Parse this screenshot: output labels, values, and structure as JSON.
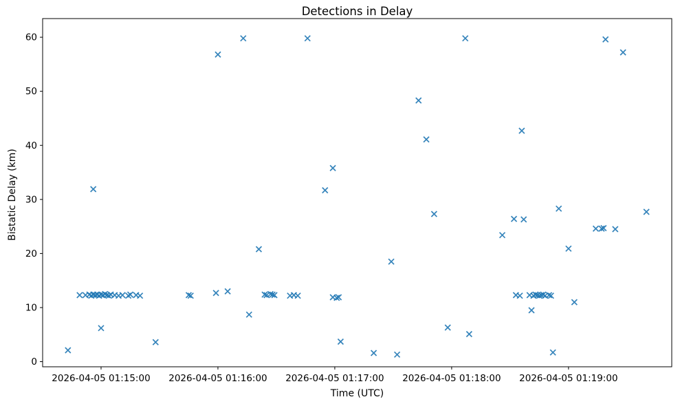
{
  "figure": {
    "title": "Detections in Delay",
    "xlabel": "Time (UTC)",
    "ylabel": "Bistatic Delay (km)"
  },
  "chart_data": {
    "type": "scatter",
    "title": "Detections in Delay",
    "xlabel": "Time (UTC)",
    "ylabel": "Bistatic Delay (km)",
    "legend": "none",
    "grid": false,
    "marker": "x",
    "marker_color": "#1f77b4",
    "date": "2026-04-05",
    "x_axis": {
      "start_time": "01:14:30",
      "end_time": "01:19:53",
      "tick_times": [
        "01:15:00",
        "01:16:00",
        "01:17:00",
        "01:18:00",
        "01:19:00"
      ],
      "tick_labels": [
        "2026-04-05 01:15:00",
        "2026-04-05 01:16:00",
        "2026-04-05 01:17:00",
        "2026-04-05 01:18:00",
        "2026-04-05 01:19:00"
      ]
    },
    "y_axis": {
      "min": -0.95,
      "max": 63.45,
      "ticks": [
        0,
        10,
        20,
        30,
        40,
        50,
        60
      ]
    },
    "points": [
      [
        "01:14:43",
        2.1
      ],
      [
        "01:14:49",
        12.3
      ],
      [
        "01:14:52",
        12.3
      ],
      [
        "01:14:54",
        12.4
      ],
      [
        "01:14:55",
        12.2
      ],
      [
        "01:14:56",
        31.9
      ],
      [
        "01:14:56",
        12.4
      ],
      [
        "01:14:57",
        12.3
      ],
      [
        "01:14:58",
        12.4
      ],
      [
        "01:14:59",
        12.2
      ],
      [
        "01:15:00",
        12.4
      ],
      [
        "01:15:00",
        6.2
      ],
      [
        "01:15:01",
        12.3
      ],
      [
        "01:15:02",
        12.5
      ],
      [
        "01:15:03",
        12.3
      ],
      [
        "01:15:04",
        12.2
      ],
      [
        "01:15:05",
        12.4
      ],
      [
        "01:15:07",
        12.3
      ],
      [
        "01:15:09",
        12.2
      ],
      [
        "01:15:11",
        12.3
      ],
      [
        "01:15:14",
        12.2
      ],
      [
        "01:15:15",
        12.4
      ],
      [
        "01:15:18",
        12.3
      ],
      [
        "01:15:20",
        12.2
      ],
      [
        "01:15:28",
        3.6
      ],
      [
        "01:15:45",
        12.3
      ],
      [
        "01:15:46",
        12.2
      ],
      [
        "01:15:59",
        12.7
      ],
      [
        "01:16:00",
        56.8
      ],
      [
        "01:16:05",
        13.0
      ],
      [
        "01:16:13",
        59.8
      ],
      [
        "01:16:16",
        8.7
      ],
      [
        "01:16:21",
        20.8
      ],
      [
        "01:16:24",
        12.4
      ],
      [
        "01:16:25",
        12.3
      ],
      [
        "01:16:27",
        12.5
      ],
      [
        "01:16:28",
        12.4
      ],
      [
        "01:16:29",
        12.3
      ],
      [
        "01:16:37",
        12.2
      ],
      [
        "01:16:39",
        12.3
      ],
      [
        "01:16:41",
        12.2
      ],
      [
        "01:16:46",
        59.8
      ],
      [
        "01:16:55",
        31.7
      ],
      [
        "01:16:59",
        35.8
      ],
      [
        "01:16:59",
        11.9
      ],
      [
        "01:17:01",
        11.8
      ],
      [
        "01:17:02",
        11.9
      ],
      [
        "01:17:03",
        3.7
      ],
      [
        "01:17:20",
        1.6
      ],
      [
        "01:17:29",
        18.5
      ],
      [
        "01:17:32",
        1.3
      ],
      [
        "01:17:43",
        48.3
      ],
      [
        "01:17:47",
        41.1
      ],
      [
        "01:17:51",
        27.3
      ],
      [
        "01:17:58",
        6.3
      ],
      [
        "01:18:07",
        59.8
      ],
      [
        "01:18:09",
        5.1
      ],
      [
        "01:18:26",
        23.4
      ],
      [
        "01:18:32",
        26.4
      ],
      [
        "01:18:33",
        12.3
      ],
      [
        "01:18:35",
        12.2
      ],
      [
        "01:18:36",
        42.7
      ],
      [
        "01:18:37",
        26.3
      ],
      [
        "01:18:40",
        12.3
      ],
      [
        "01:18:41",
        9.5
      ],
      [
        "01:18:42",
        12.2
      ],
      [
        "01:18:43",
        12.4
      ],
      [
        "01:18:44",
        12.3
      ],
      [
        "01:18:45",
        12.2
      ],
      [
        "01:18:46",
        12.3
      ],
      [
        "01:18:47",
        12.4
      ],
      [
        "01:18:48",
        12.2
      ],
      [
        "01:18:50",
        12.3
      ],
      [
        "01:18:51",
        12.2
      ],
      [
        "01:18:52",
        1.7
      ],
      [
        "01:18:55",
        28.3
      ],
      [
        "01:19:00",
        20.9
      ],
      [
        "01:19:03",
        11.0
      ],
      [
        "01:19:14",
        24.6
      ],
      [
        "01:19:17",
        24.6
      ],
      [
        "01:19:18",
        24.7
      ],
      [
        "01:19:19",
        59.6
      ],
      [
        "01:19:24",
        24.5
      ],
      [
        "01:19:28",
        57.2
      ],
      [
        "01:19:40",
        27.7
      ]
    ]
  }
}
